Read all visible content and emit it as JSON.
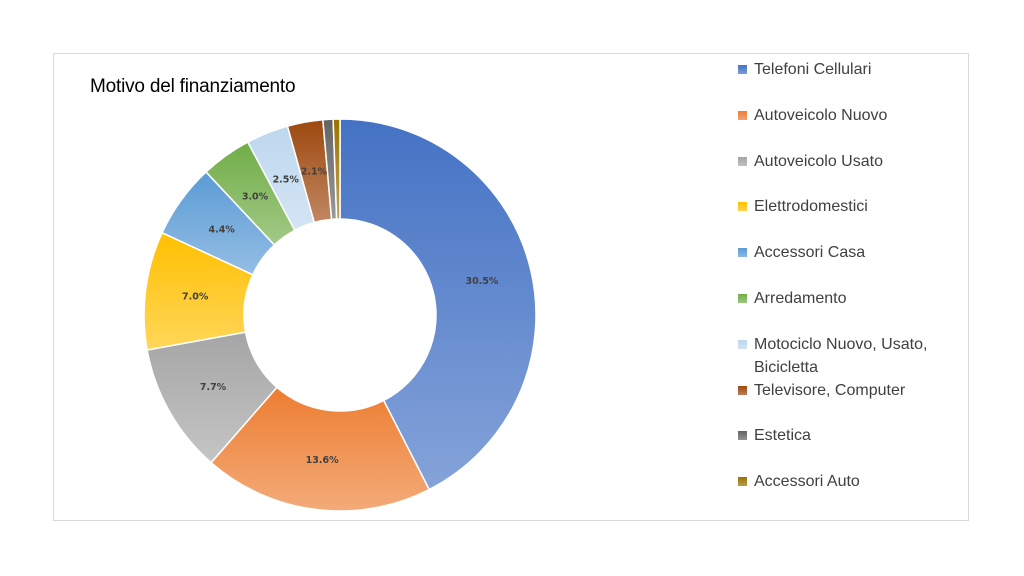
{
  "chart_data": {
    "type": "pie",
    "title": "Motivo del finanziamento",
    "categories": [
      "Telefoni Cellulari",
      "Autoveicolo Nuovo",
      "Autoveicolo Usato",
      "Elettrodomestici",
      "Accessori Casa",
      "Arredamento",
      "Motociclo Nuovo, Usato, Bicicletta",
      "Televisore, Computer",
      "Estetica",
      "Accessori Auto"
    ],
    "values": [
      30.5,
      13.6,
      7.7,
      7.0,
      4.4,
      3.0,
      2.5,
      2.1,
      0.6,
      0.4
    ],
    "data_labels": [
      "30.5%",
      "13.6%",
      "7.7%",
      "7.0%",
      "4.4%",
      "3.0%",
      "2.5%",
      "2.1%",
      "",
      ""
    ],
    "colors": [
      "#4472c4",
      "#ed7d31",
      "#a5a5a5",
      "#ffc000",
      "#5b9bd5",
      "#70ad47",
      "#bdd7ee",
      "#9e480e",
      "#636363",
      "#997300"
    ],
    "legend_position": "right",
    "style": "doughnut"
  }
}
